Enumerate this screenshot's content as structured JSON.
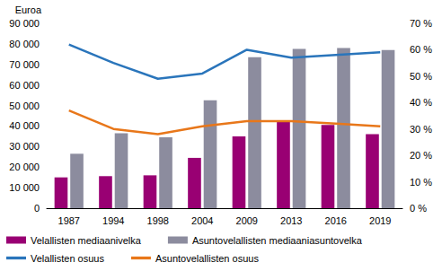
{
  "chart_data": {
    "type": "bar",
    "categories": [
      "1987",
      "1994",
      "1998",
      "2004",
      "2009",
      "2013",
      "2016",
      "2019"
    ],
    "y_label": "Euroa",
    "series": [
      {
        "name": "Velallisten mediaanivelka",
        "type": "bar",
        "color": "#990073",
        "values": [
          15000,
          15600,
          16000,
          24500,
          35000,
          42000,
          40500,
          36000
        ]
      },
      {
        "name": "Asuntovelallisten mediaaniasuntovelka",
        "type": "bar",
        "color": "#8c8c9e",
        "values": [
          26500,
          36500,
          34500,
          52500,
          73500,
          77500,
          78000,
          77000
        ]
      },
      {
        "name": "Velallisten osuus",
        "type": "line",
        "axis": "y2",
        "color": "#2a75bb",
        "values": [
          62,
          55,
          49,
          51,
          60,
          57,
          58,
          59
        ]
      },
      {
        "name": "Asuntovelallisten osuus",
        "type": "line",
        "axis": "y2",
        "color": "#e8771a",
        "values": [
          37,
          30,
          28,
          31,
          33,
          33,
          32,
          31
        ]
      }
    ],
    "ylim": [
      0,
      90000
    ],
    "yticks": [
      {
        "value": 0,
        "label": "0"
      },
      {
        "value": 10000,
        "label": "10 000"
      },
      {
        "value": 20000,
        "label": "20 000"
      },
      {
        "value": 30000,
        "label": "30 000"
      },
      {
        "value": 40000,
        "label": "40 000"
      },
      {
        "value": 50000,
        "label": "50 000"
      },
      {
        "value": 60000,
        "label": "60 000"
      },
      {
        "value": 70000,
        "label": "70 000"
      },
      {
        "value": 80000,
        "label": "80 000"
      },
      {
        "value": 90000,
        "label": "90 000"
      }
    ],
    "y2lim": [
      0,
      70
    ],
    "y2ticks": [
      {
        "value": 0,
        "label": "0 %"
      },
      {
        "value": 10,
        "label": "10 %"
      },
      {
        "value": 20,
        "label": "20 %"
      },
      {
        "value": 30,
        "label": "30 %"
      },
      {
        "value": 40,
        "label": "40 %"
      },
      {
        "value": 50,
        "label": "50 %"
      },
      {
        "value": 60,
        "label": "60 %"
      },
      {
        "value": 70,
        "label": "70 %"
      }
    ],
    "grid": false,
    "legend": "bottom"
  }
}
